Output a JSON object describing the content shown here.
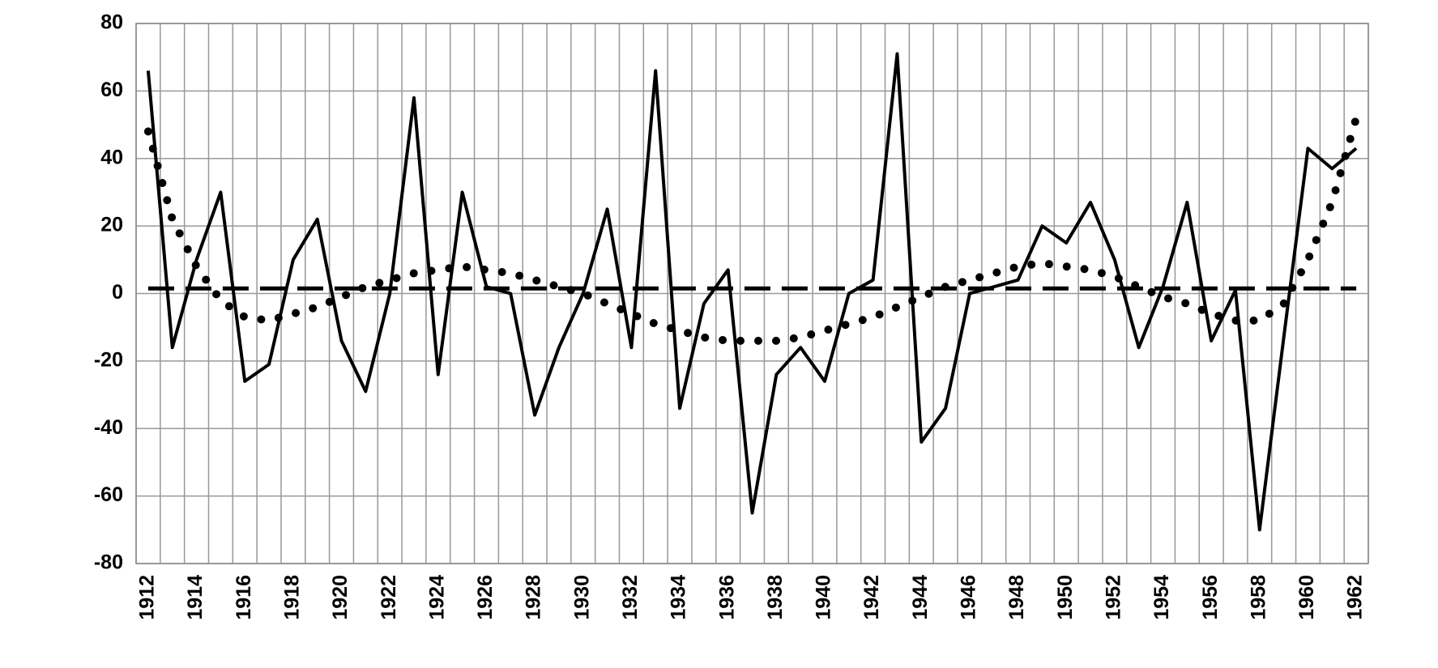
{
  "chart_data": {
    "type": "line",
    "categories": [
      "1912",
      null,
      "1914",
      null,
      "1916",
      null,
      "1918",
      null,
      "1920",
      null,
      "1922",
      null,
      "1924",
      null,
      "1926",
      null,
      "1928",
      null,
      "1930",
      null,
      "1932",
      null,
      "1934",
      null,
      "1936",
      null,
      "1938",
      null,
      "1940",
      null,
      "1942",
      null,
      "1944",
      null,
      "1946",
      null,
      "1948",
      null,
      "1950",
      null,
      "1952",
      null,
      "1954",
      null,
      "1956",
      null,
      "1958",
      null,
      "1960",
      null,
      "1962"
    ],
    "series": [
      {
        "color": "#000000",
        "style": "solid",
        "values": [
          66,
          -16,
          10,
          30,
          -26,
          -21,
          10,
          22,
          -14,
          -29,
          0,
          58,
          -24,
          30,
          2,
          0,
          -36,
          -16,
          0,
          25,
          -16,
          66,
          -34,
          -3,
          7,
          -65,
          -24,
          -16,
          -26,
          0,
          4,
          71,
          -44,
          -34,
          0,
          2,
          4,
          20,
          15,
          27,
          10,
          -16,
          2,
          27,
          -14,
          1,
          -70,
          -13,
          43,
          37,
          43
        ]
      },
      {
        "color": "#000000",
        "style": "dotted",
        "values": [
          48,
          22,
          8,
          -2,
          -7,
          -8,
          -6,
          -4,
          -1,
          2,
          4,
          6,
          7,
          8,
          7,
          6,
          4,
          2,
          0,
          -3,
          -6,
          -9,
          -11,
          -13,
          -14,
          -14,
          -14,
          -13,
          -11,
          -9,
          -7,
          -4,
          -1,
          2,
          4,
          6,
          8,
          9,
          8,
          7,
          5,
          2,
          -1,
          -3,
          -6,
          -8,
          -8,
          -3,
          10,
          27,
          52
        ]
      },
      {
        "color": "#000000",
        "style": "dashed",
        "values": [
          1.5,
          1.5,
          1.5,
          1.5,
          1.5,
          1.5,
          1.5,
          1.5,
          1.5,
          1.5,
          1.5,
          1.5,
          1.5,
          1.5,
          1.5,
          1.5,
          1.5,
          1.5,
          1.5,
          1.5,
          1.5,
          1.5,
          1.5,
          1.5,
          1.5,
          1.5,
          1.5,
          1.5,
          1.5,
          1.5,
          1.5,
          1.5,
          1.5,
          1.5,
          1.5,
          1.5,
          1.5,
          1.5,
          1.5,
          1.5,
          1.5,
          1.5,
          1.5,
          1.5,
          1.5,
          1.5,
          1.5,
          1.5,
          1.5,
          1.5,
          1.5
        ]
      }
    ],
    "ylim": [
      -80,
      80
    ],
    "yticks": [
      -80,
      -60,
      -40,
      -20,
      0,
      20,
      40,
      60,
      80
    ],
    "grid": true
  }
}
